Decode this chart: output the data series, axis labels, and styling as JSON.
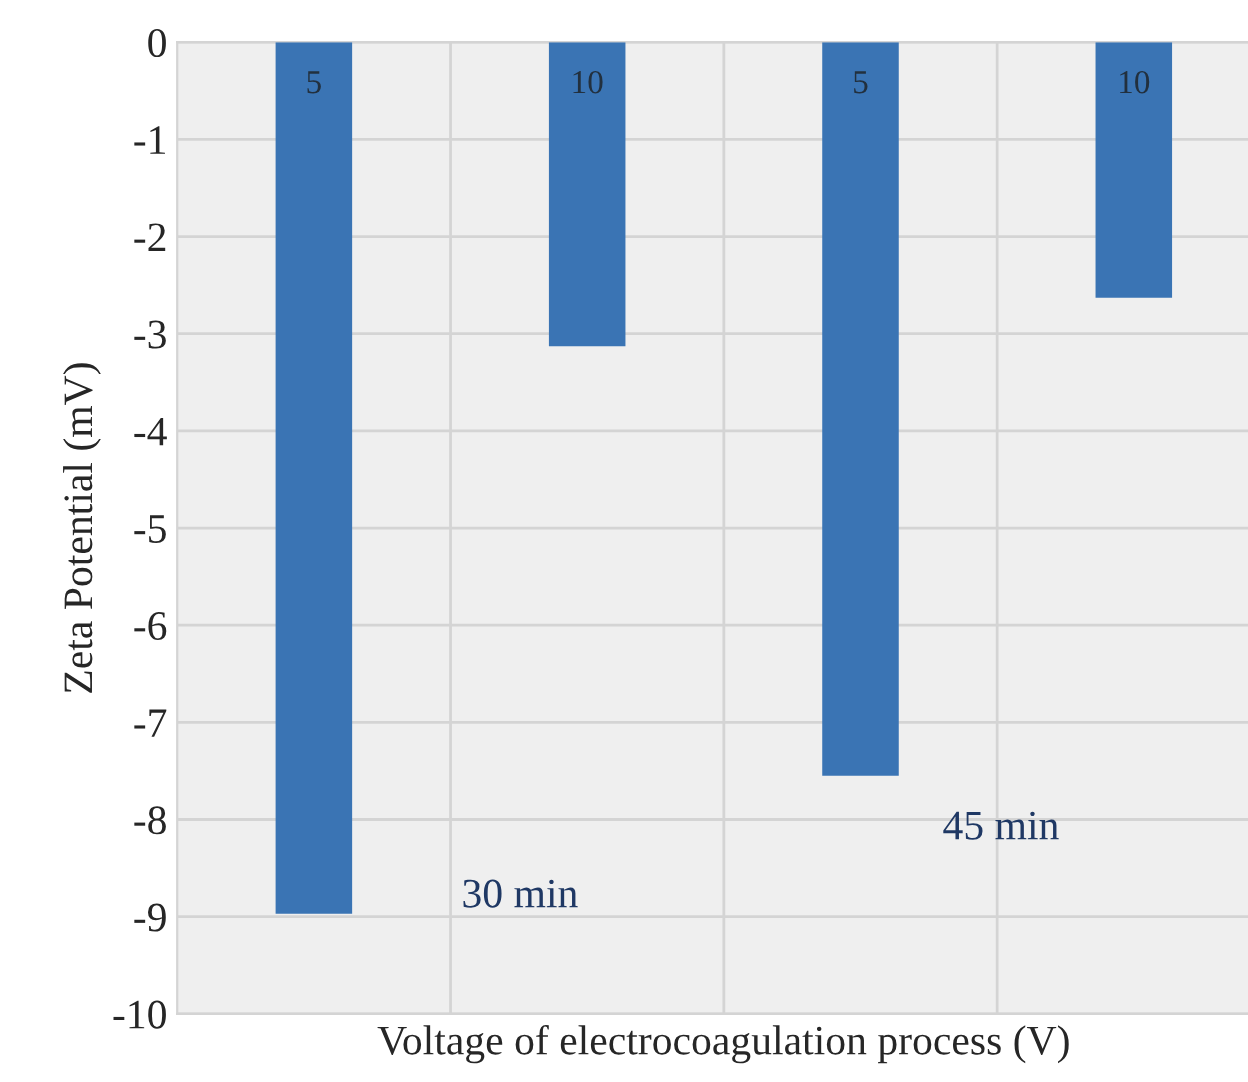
{
  "chart_data": {
    "type": "bar",
    "xlabel": "Voltage of electrocoagulation process (V)",
    "ylabel": "Zeta Potential (mV)",
    "categories": [
      "5",
      "10",
      "5",
      "10"
    ],
    "values": [
      -8.97,
      -3.13,
      -7.55,
      -2.63
    ],
    "color": "#3a74b4",
    "ylim": [
      -10,
      0
    ],
    "yticks": [
      -10,
      -9,
      -8,
      -7,
      -6,
      -5,
      -4,
      -3,
      -2,
      -1,
      0
    ],
    "grid": true,
    "annotations": [
      "30 min",
      "45 min"
    ]
  }
}
